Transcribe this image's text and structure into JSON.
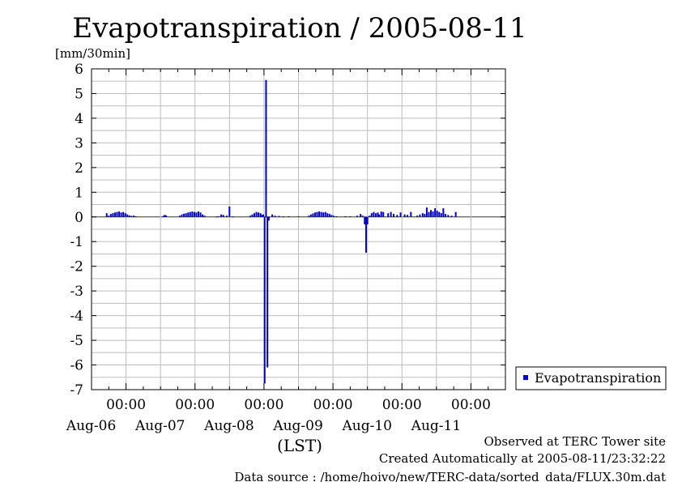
{
  "chart_data": {
    "type": "bar",
    "title": "Evapotranspiration / 2005-08-11",
    "ylabel": "[mm/30min]",
    "xlabel": "(LST)",
    "ylim": [
      -7,
      6
    ],
    "yticks": [
      6,
      5,
      4,
      3,
      2,
      1,
      0,
      -1,
      -2,
      -3,
      -4,
      -5,
      -6,
      -7
    ],
    "ytick_labels": [
      "6",
      "5",
      "4",
      "3",
      "2",
      "1",
      "0",
      "-1",
      "-2",
      "-3",
      "-4",
      "-5",
      "-6",
      "-7"
    ],
    "x_range_days": [
      -0.5,
      5.5
    ],
    "x_start": "2005-08-05T12:00",
    "x_ticks": [
      {
        "time": "00:00",
        "date": "Aug-06"
      },
      {
        "time": "00:00",
        "date": "Aug-07"
      },
      {
        "time": "00:00",
        "date": "Aug-08"
      },
      {
        "time": "00:00",
        "date": "Aug-09"
      },
      {
        "time": "00:00",
        "date": "Aug-10"
      },
      {
        "time": "00:00",
        "date": "Aug-11"
      }
    ],
    "grid": true,
    "legend_position": "right",
    "series": [
      {
        "name": "Evapotranspiration",
        "color": "#0000cc",
        "points": [
          [
            -0.28,
            0.15
          ],
          [
            -0.25,
            0.05
          ],
          [
            -0.22,
            0.12
          ],
          [
            -0.19,
            0.15
          ],
          [
            -0.16,
            0.18
          ],
          [
            -0.13,
            0.2
          ],
          [
            -0.1,
            0.22
          ],
          [
            -0.07,
            0.18
          ],
          [
            -0.04,
            0.2
          ],
          [
            -0.01,
            0.15
          ],
          [
            0.02,
            0.1
          ],
          [
            0.05,
            0.06
          ],
          [
            0.08,
            0.04
          ],
          [
            0.11,
            0.05
          ],
          [
            0.14,
            0.03
          ],
          [
            0.54,
            0.04
          ],
          [
            0.56,
            0.08
          ],
          [
            0.58,
            0.06
          ],
          [
            0.78,
            0.05
          ],
          [
            0.81,
            0.1
          ],
          [
            0.84,
            0.13
          ],
          [
            0.87,
            0.15
          ],
          [
            0.9,
            0.18
          ],
          [
            0.93,
            0.2
          ],
          [
            0.96,
            0.22
          ],
          [
            0.99,
            0.2
          ],
          [
            1.02,
            0.18
          ],
          [
            1.05,
            0.22
          ],
          [
            1.08,
            0.18
          ],
          [
            1.11,
            0.1
          ],
          [
            1.14,
            0.05
          ],
          [
            1.31,
            0.02
          ],
          [
            1.34,
            0.03
          ],
          [
            1.38,
            0.1
          ],
          [
            1.41,
            0.08
          ],
          [
            1.46,
            0.05
          ],
          [
            1.5,
            0.42
          ],
          [
            1.55,
            0.02
          ],
          [
            1.8,
            0.05
          ],
          [
            1.83,
            0.1
          ],
          [
            1.86,
            0.15
          ],
          [
            1.89,
            0.2
          ],
          [
            1.92,
            0.18
          ],
          [
            1.95,
            0.15
          ],
          [
            1.97,
            0.08
          ],
          [
            1.99,
            0.1
          ],
          [
            2.01,
            -6.75
          ],
          [
            2.03,
            5.55
          ],
          [
            2.05,
            -6.1
          ],
          [
            2.07,
            -0.15
          ],
          [
            2.12,
            0.1
          ],
          [
            2.16,
            0.05
          ],
          [
            2.22,
            0.04
          ],
          [
            2.28,
            0.02
          ],
          [
            2.36,
            0.03
          ],
          [
            2.5,
            0.03
          ],
          [
            2.65,
            0.05
          ],
          [
            2.68,
            0.1
          ],
          [
            2.71,
            0.14
          ],
          [
            2.74,
            0.18
          ],
          [
            2.77,
            0.2
          ],
          [
            2.8,
            0.22
          ],
          [
            2.83,
            0.2
          ],
          [
            2.86,
            0.18
          ],
          [
            2.89,
            0.2
          ],
          [
            2.92,
            0.15
          ],
          [
            2.95,
            0.12
          ],
          [
            2.98,
            0.08
          ],
          [
            3.01,
            0.05
          ],
          [
            3.05,
            0.03
          ],
          [
            3.18,
            0.03
          ],
          [
            3.25,
            0.02
          ],
          [
            3.35,
            0.05
          ],
          [
            3.4,
            0.12
          ],
          [
            3.43,
            0.05
          ],
          [
            3.46,
            -0.3
          ],
          [
            3.48,
            -1.45
          ],
          [
            3.5,
            -0.3
          ],
          [
            3.53,
            0.05
          ],
          [
            3.56,
            0.15
          ],
          [
            3.59,
            0.2
          ],
          [
            3.62,
            0.15
          ],
          [
            3.65,
            0.18
          ],
          [
            3.67,
            0.1
          ],
          [
            3.7,
            0.22
          ],
          [
            3.73,
            0.2
          ],
          [
            3.8,
            0.15
          ],
          [
            3.84,
            0.2
          ],
          [
            3.88,
            0.12
          ],
          [
            3.93,
            0.08
          ],
          [
            3.98,
            0.18
          ],
          [
            4.04,
            0.1
          ],
          [
            4.08,
            0.08
          ],
          [
            4.13,
            0.2
          ],
          [
            4.22,
            0.05
          ],
          [
            4.26,
            0.1
          ],
          [
            4.3,
            0.15
          ],
          [
            4.33,
            0.12
          ],
          [
            4.36,
            0.38
          ],
          [
            4.39,
            0.2
          ],
          [
            4.42,
            0.28
          ],
          [
            4.45,
            0.22
          ],
          [
            4.48,
            0.35
          ],
          [
            4.51,
            0.25
          ],
          [
            4.54,
            0.2
          ],
          [
            4.57,
            0.15
          ],
          [
            4.6,
            0.35
          ],
          [
            4.63,
            0.12
          ],
          [
            4.67,
            0.08
          ],
          [
            4.72,
            0.05
          ],
          [
            4.78,
            0.2
          ]
        ]
      }
    ]
  },
  "footer": {
    "line1": "Observed at TERC Tower site",
    "line2": "Created Automatically at 2005-08-11/23:32:22",
    "line3": "Data source : /home/hoivo/new/TERC-data/sorted_data/FLUX.30m.dat"
  }
}
